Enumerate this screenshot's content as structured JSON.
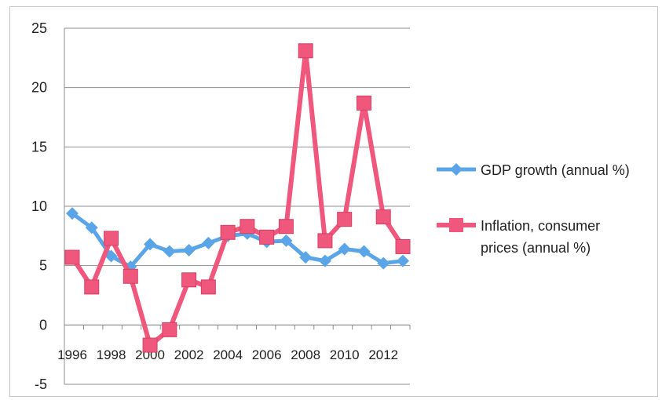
{
  "chart_data": {
    "type": "line",
    "title": "",
    "xlabel": "",
    "ylabel": "",
    "x": [
      1996,
      1997,
      1998,
      1999,
      2000,
      2001,
      2002,
      2003,
      2004,
      2005,
      2006,
      2007,
      2008,
      2009,
      2010,
      2011,
      2012,
      2013
    ],
    "x_tick_labels": [
      "1996",
      "1998",
      "2000",
      "2002",
      "2004",
      "2006",
      "2008",
      "2010",
      "2012"
    ],
    "y_tick_labels": [
      "25",
      "20",
      "15",
      "10",
      "5",
      "0",
      "-5"
    ],
    "ylim": [
      -5,
      25
    ],
    "grid": "horizontal",
    "legend_position": "right",
    "series": [
      {
        "name": "GDP growth (annual %)",
        "color": "#5aa5e8",
        "marker": "diamond",
        "values": [
          9.4,
          8.2,
          5.8,
          4.9,
          6.8,
          6.2,
          6.3,
          6.9,
          7.5,
          7.7,
          7.0,
          7.1,
          5.7,
          5.4,
          6.4,
          6.2,
          5.2,
          5.4
        ]
      },
      {
        "name": "Inflation, consumer prices (annual %)",
        "legend_lines": [
          "Inflation, consumer",
          "prices (annual %)"
        ],
        "color": "#f0577c",
        "marker": "square",
        "values": [
          5.7,
          3.2,
          7.3,
          4.1,
          -1.7,
          -0.4,
          3.8,
          3.2,
          7.8,
          8.3,
          7.4,
          8.3,
          23.1,
          7.1,
          8.9,
          18.7,
          9.1,
          6.6
        ]
      }
    ]
  }
}
